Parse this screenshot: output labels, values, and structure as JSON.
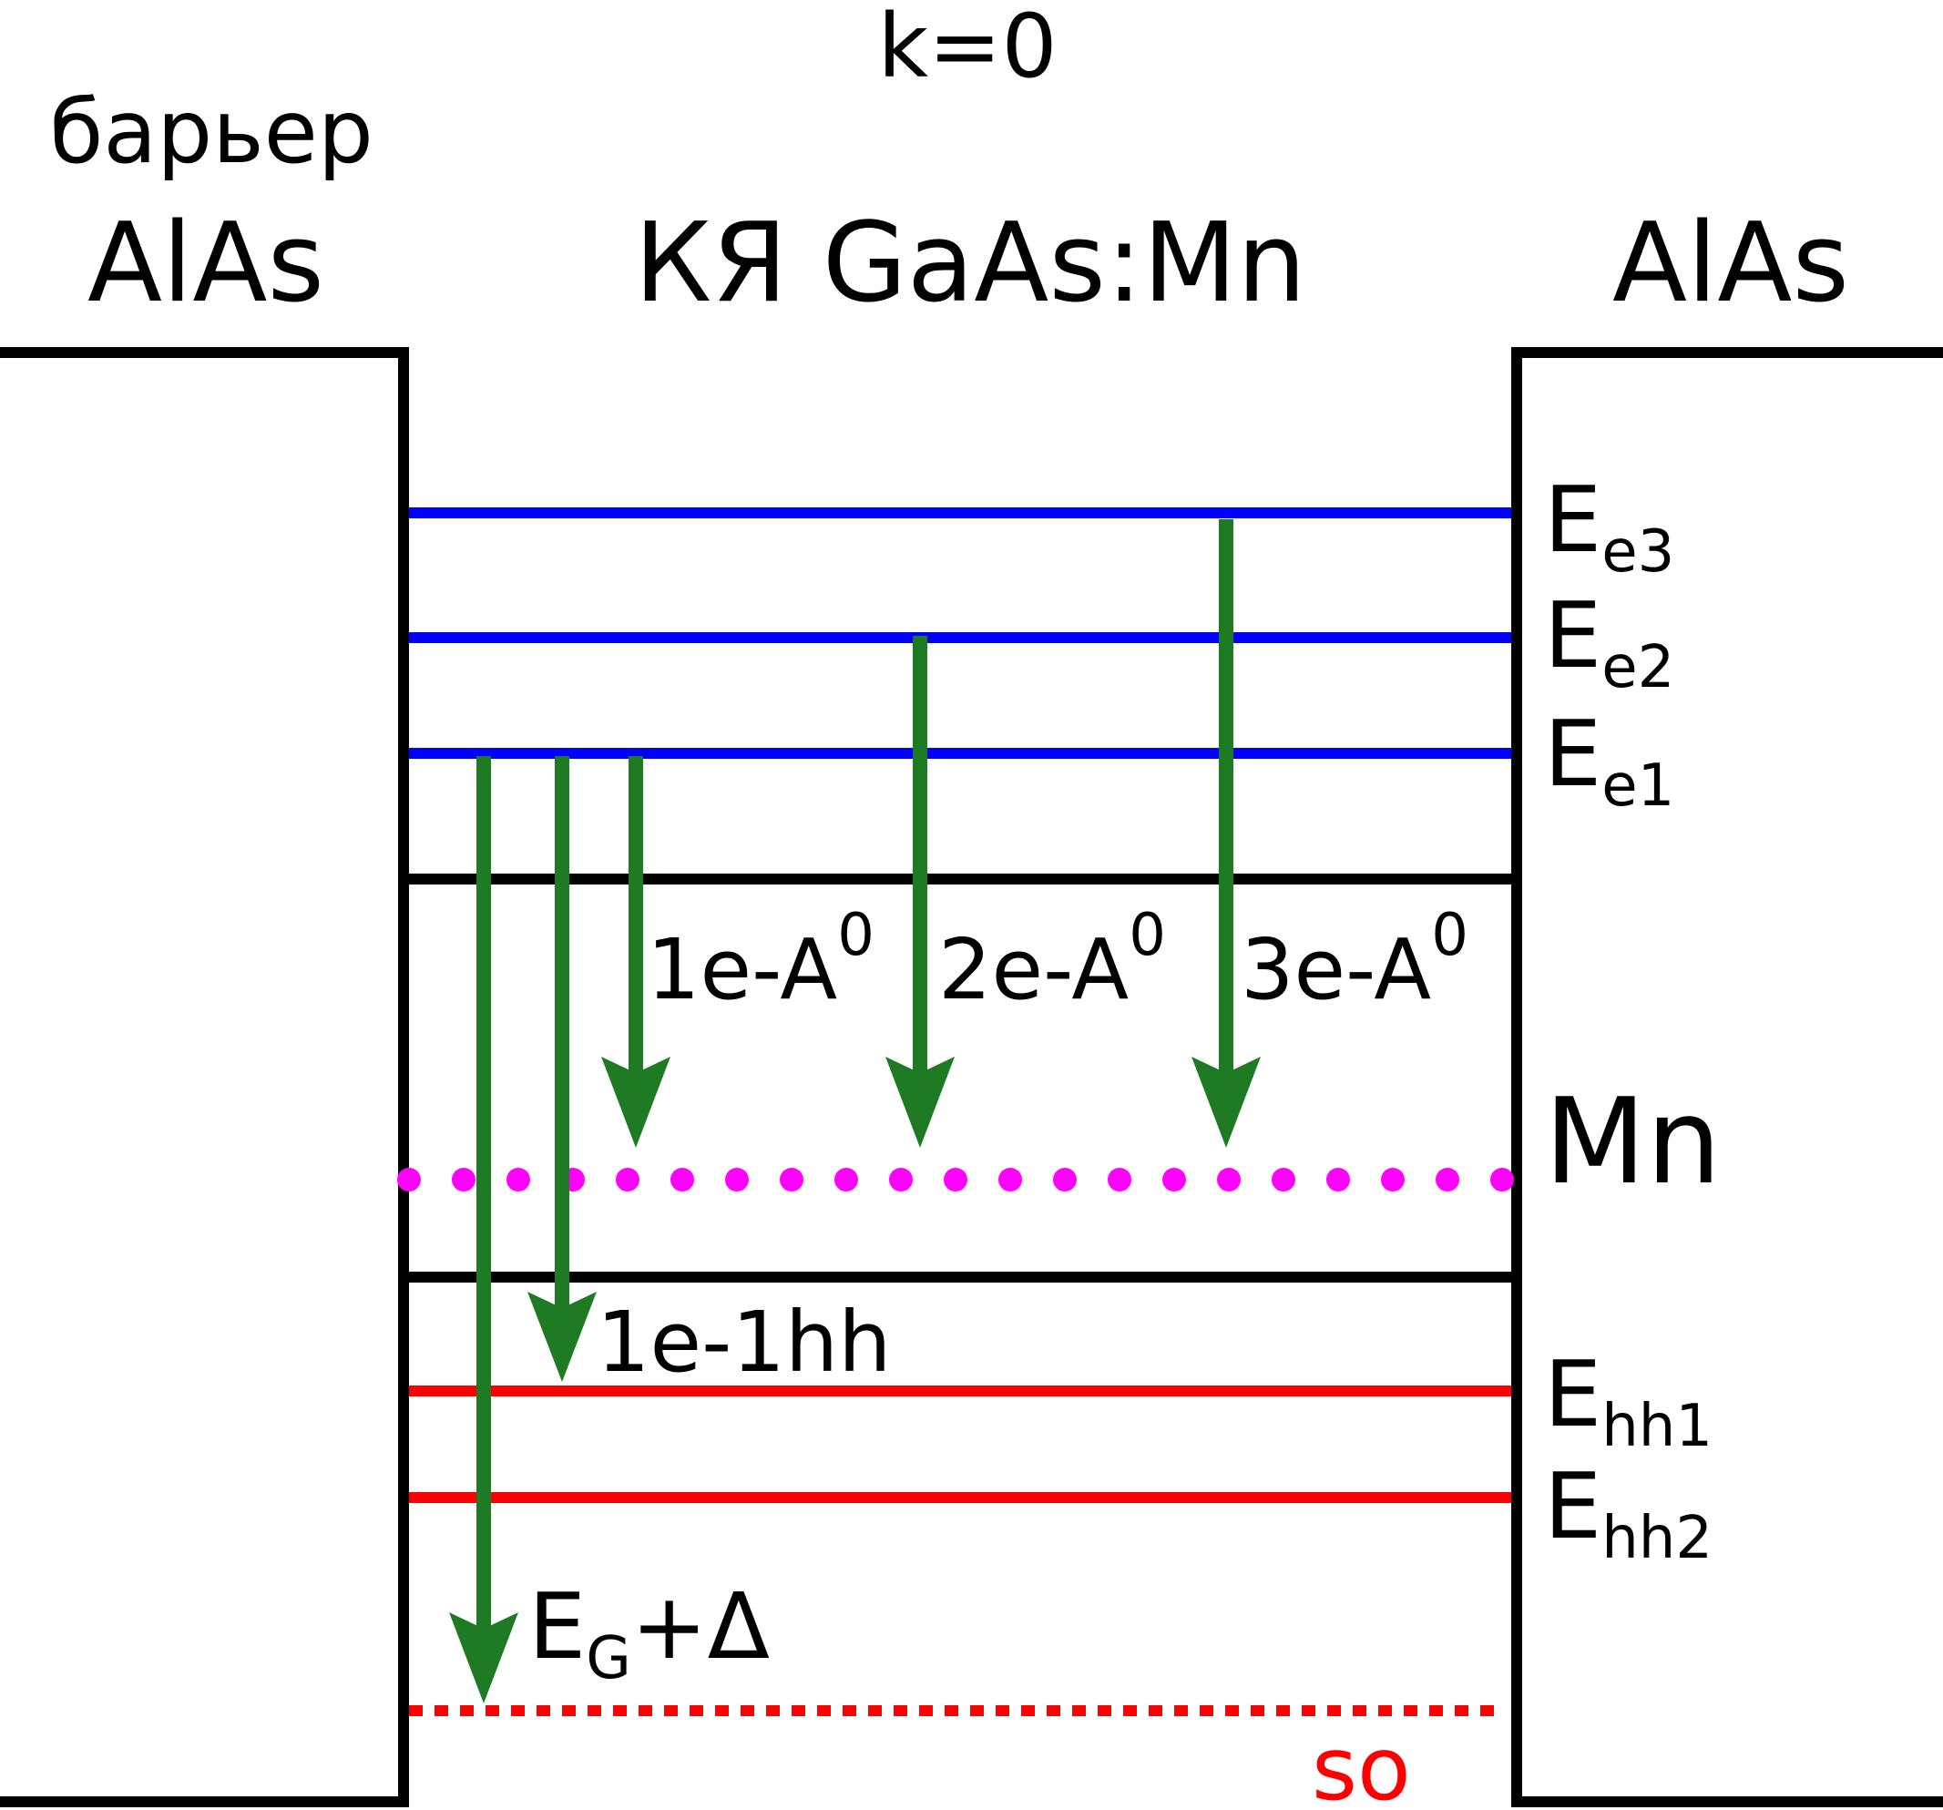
{
  "header": {
    "k_label": "k=0",
    "barrier_label": "барьер",
    "left_material": "AlAs",
    "well_label": "КЯ GaAs:Mn",
    "right_material": "AlAs"
  },
  "levels": {
    "e3": {
      "main": "E",
      "sub": "e3"
    },
    "e2": {
      "main": "E",
      "sub": "e2"
    },
    "e1": {
      "main": "E",
      "sub": "e1"
    },
    "mn": "Mn",
    "hh1": {
      "main": "E",
      "sub": "hh1"
    },
    "hh2": {
      "main": "E",
      "sub": "hh2"
    },
    "so": "so"
  },
  "transitions": {
    "t1e_a0": {
      "main": "1e-A",
      "sup": "0"
    },
    "t2e_a0": {
      "main": "2e-A",
      "sup": "0"
    },
    "t3e_a0": {
      "main": "3e-A",
      "sup": "0"
    },
    "t1e_1hh": "1e-1hh",
    "tgap": {
      "main": "E",
      "sub": "G",
      "tail": "+Δ"
    }
  },
  "colors": {
    "outline": "#000000",
    "electron_level": "#0000ff",
    "hole_level": "#ff0000",
    "acceptor_level": "#ff00ff",
    "arrow": "#1e7b24"
  }
}
